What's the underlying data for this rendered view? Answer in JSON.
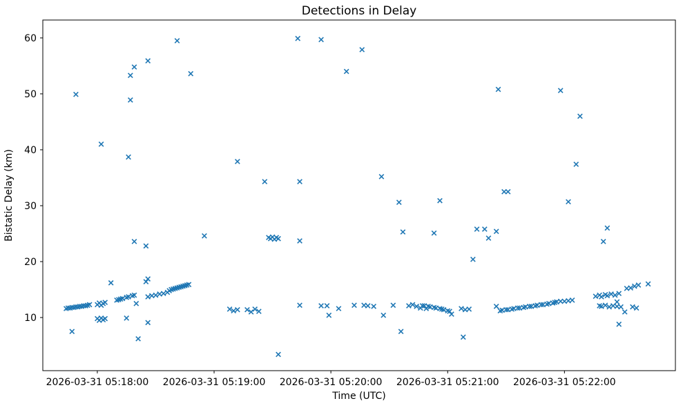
{
  "chart_data": {
    "type": "scatter",
    "title": "Detections in Delay",
    "xlabel": "Time (UTC)",
    "ylabel": "Bistatic Delay (km)",
    "marker": "x",
    "marker_color": "#1f77b4",
    "grid": false,
    "legend": "none",
    "x_unit": "seconds after 2026-03-31 05:17:00 UTC",
    "xlim": [
      32,
      357
    ],
    "ylim": [
      0.5,
      63.2
    ],
    "x_ticks": [
      {
        "t": 60,
        "label": "2026-03-31 05:18:00"
      },
      {
        "t": 120,
        "label": "2026-03-31 05:19:00"
      },
      {
        "t": 180,
        "label": "2026-03-31 05:20:00"
      },
      {
        "t": 240,
        "label": "2026-03-31 05:21:00"
      },
      {
        "t": 300,
        "label": "2026-03-31 05:22:00"
      }
    ],
    "y_ticks": [
      10,
      20,
      30,
      40,
      50,
      60
    ],
    "points": [
      [
        44,
        11.6
      ],
      [
        45,
        11.7
      ],
      [
        46,
        11.7
      ],
      [
        47,
        11.8
      ],
      [
        47,
        7.5
      ],
      [
        48,
        11.8
      ],
      [
        49,
        11.9
      ],
      [
        49,
        49.9
      ],
      [
        50,
        11.9
      ],
      [
        51,
        12.0
      ],
      [
        52,
        12.0
      ],
      [
        53,
        12.1
      ],
      [
        54,
        12.1
      ],
      [
        55,
        12.2
      ],
      [
        56,
        12.3
      ],
      [
        60,
        12.3
      ],
      [
        60,
        9.8
      ],
      [
        61,
        12.6
      ],
      [
        61,
        9.5
      ],
      [
        62,
        12.2
      ],
      [
        62,
        9.9
      ],
      [
        62,
        41.0
      ],
      [
        63,
        12.5
      ],
      [
        63,
        9.6
      ],
      [
        64,
        12.7
      ],
      [
        64,
        9.8
      ],
      [
        67,
        16.2
      ],
      [
        70,
        13.1
      ],
      [
        71,
        13.2
      ],
      [
        72,
        13.3
      ],
      [
        73,
        13.4
      ],
      [
        75,
        13.6
      ],
      [
        75,
        9.9
      ],
      [
        76,
        13.7
      ],
      [
        76,
        38.7
      ],
      [
        77,
        53.3
      ],
      [
        77,
        48.9
      ],
      [
        78,
        13.9
      ],
      [
        79,
        14.0
      ],
      [
        79,
        54.8
      ],
      [
        79,
        23.6
      ],
      [
        80,
        12.5
      ],
      [
        81,
        6.2
      ],
      [
        85,
        22.8
      ],
      [
        85,
        16.4
      ],
      [
        86,
        16.9
      ],
      [
        86,
        55.9
      ],
      [
        86,
        9.1
      ],
      [
        86,
        13.7
      ],
      [
        88,
        13.9
      ],
      [
        90,
        14.0
      ],
      [
        92,
        14.2
      ],
      [
        94,
        14.3
      ],
      [
        96,
        14.5
      ],
      [
        97,
        14.8
      ],
      [
        98,
        15.0
      ],
      [
        99,
        15.1
      ],
      [
        100,
        15.2
      ],
      [
        101,
        15.3
      ],
      [
        101,
        59.5
      ],
      [
        102,
        15.4
      ],
      [
        103,
        15.5
      ],
      [
        104,
        15.6
      ],
      [
        105,
        15.7
      ],
      [
        106,
        15.8
      ],
      [
        107,
        15.9
      ],
      [
        108,
        53.6
      ],
      [
        115,
        24.6
      ],
      [
        128,
        11.5
      ],
      [
        130,
        11.2
      ],
      [
        132,
        11.4
      ],
      [
        132,
        37.9
      ],
      [
        137,
        11.4
      ],
      [
        139,
        11.0
      ],
      [
        141,
        11.5
      ],
      [
        143,
        11.1
      ],
      [
        146,
        34.3
      ],
      [
        148,
        24.3
      ],
      [
        149,
        24.1
      ],
      [
        150,
        24.4
      ],
      [
        151,
        24.0
      ],
      [
        152,
        24.3
      ],
      [
        153,
        24.1
      ],
      [
        153,
        3.4
      ],
      [
        163,
        59.9
      ],
      [
        164,
        34.3
      ],
      [
        164,
        23.7
      ],
      [
        164,
        12.2
      ],
      [
        175,
        59.7
      ],
      [
        175,
        12.1
      ],
      [
        178,
        12.1
      ],
      [
        179,
        10.4
      ],
      [
        184,
        11.6
      ],
      [
        188,
        54.0
      ],
      [
        192,
        12.2
      ],
      [
        196,
        57.9
      ],
      [
        197,
        12.2
      ],
      [
        199,
        12.1
      ],
      [
        202,
        12.0
      ],
      [
        206,
        35.2
      ],
      [
        207,
        10.4
      ],
      [
        212,
        12.2
      ],
      [
        215,
        30.6
      ],
      [
        216,
        7.5
      ],
      [
        217,
        25.3
      ],
      [
        220,
        12.1
      ],
      [
        222,
        12.3
      ],
      [
        224,
        12.0
      ],
      [
        226,
        11.7
      ],
      [
        227,
        12.1
      ],
      [
        228,
        12.1
      ],
      [
        229,
        11.6
      ],
      [
        230,
        12.0
      ],
      [
        231,
        11.9
      ],
      [
        233,
        11.8
      ],
      [
        233,
        25.1
      ],
      [
        234,
        11.7
      ],
      [
        236,
        11.6
      ],
      [
        236,
        30.9
      ],
      [
        237,
        11.5
      ],
      [
        238,
        11.4
      ],
      [
        240,
        11.2
      ],
      [
        241,
        11.1
      ],
      [
        242,
        10.6
      ],
      [
        247,
        11.6
      ],
      [
        248,
        6.5
      ],
      [
        249,
        11.4
      ],
      [
        251,
        11.5
      ],
      [
        253,
        20.4
      ],
      [
        255,
        25.8
      ],
      [
        259,
        25.8
      ],
      [
        261,
        24.2
      ],
      [
        265,
        25.4
      ],
      [
        265,
        12.0
      ],
      [
        266,
        50.8
      ],
      [
        267,
        11.2
      ],
      [
        268,
        11.3
      ],
      [
        269,
        32.5
      ],
      [
        270,
        11.4
      ],
      [
        271,
        11.4
      ],
      [
        271,
        32.5
      ],
      [
        273,
        11.5
      ],
      [
        274,
        11.6
      ],
      [
        276,
        11.7
      ],
      [
        277,
        11.7
      ],
      [
        279,
        11.8
      ],
      [
        280,
        11.9
      ],
      [
        282,
        12.0
      ],
      [
        283,
        12.0
      ],
      [
        285,
        12.1
      ],
      [
        286,
        12.2
      ],
      [
        288,
        12.3
      ],
      [
        289,
        12.3
      ],
      [
        291,
        12.4
      ],
      [
        292,
        12.5
      ],
      [
        294,
        12.6
      ],
      [
        295,
        12.7
      ],
      [
        296,
        12.8
      ],
      [
        298,
        12.9
      ],
      [
        298,
        50.6
      ],
      [
        300,
        12.9
      ],
      [
        302,
        13.0
      ],
      [
        302,
        30.7
      ],
      [
        304,
        13.1
      ],
      [
        306,
        37.4
      ],
      [
        308,
        46.0
      ],
      [
        316,
        13.8
      ],
      [
        318,
        14.0
      ],
      [
        318,
        12.1
      ],
      [
        319,
        13.7
      ],
      [
        319,
        12.0
      ],
      [
        320,
        23.6
      ],
      [
        321,
        14.1
      ],
      [
        321,
        12.2
      ],
      [
        322,
        13.9
      ],
      [
        322,
        26.0
      ],
      [
        323,
        11.9
      ],
      [
        324,
        14.2
      ],
      [
        325,
        12.1
      ],
      [
        326,
        14.0
      ],
      [
        327,
        12.0
      ],
      [
        327,
        12.8
      ],
      [
        328,
        14.3
      ],
      [
        328,
        8.8
      ],
      [
        329,
        11.9
      ],
      [
        331,
        11.0
      ],
      [
        332,
        15.2
      ],
      [
        334,
        15.3
      ],
      [
        335,
        11.9
      ],
      [
        336,
        15.6
      ],
      [
        337,
        11.7
      ],
      [
        338,
        15.8
      ],
      [
        343,
        16.0
      ]
    ]
  }
}
